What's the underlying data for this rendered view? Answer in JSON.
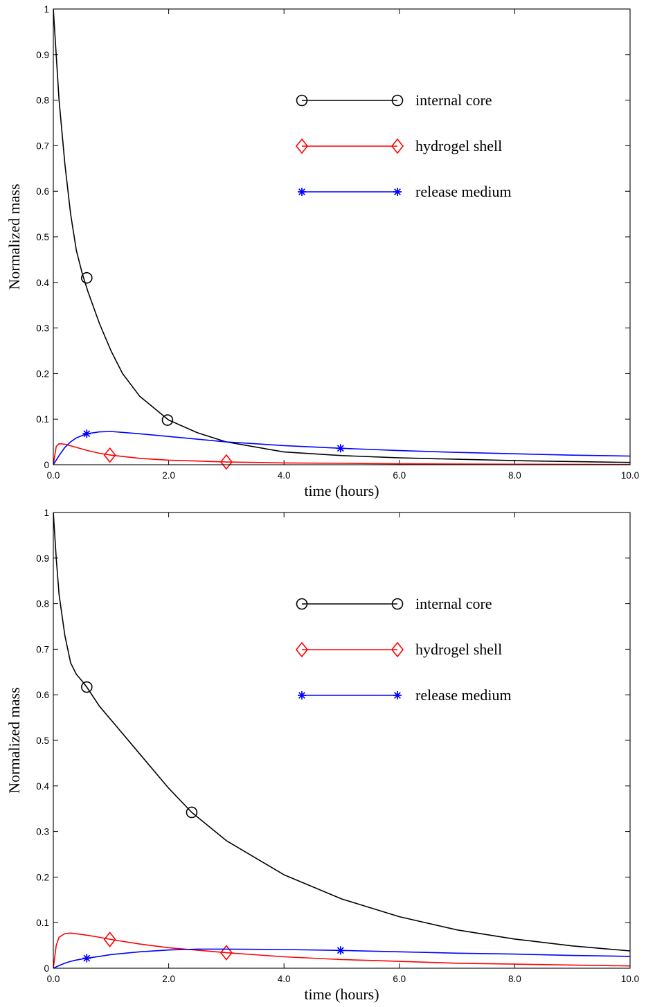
{
  "chart_data": [
    {
      "type": "line",
      "xlabel": "time (hours)",
      "ylabel": "Normalized mass",
      "xlim": [
        0,
        10
      ],
      "ylim": [
        0,
        1
      ],
      "xticks": [
        0,
        2,
        4,
        6,
        8,
        10
      ],
      "xtick_labels": [
        "0.0",
        "2.0",
        "4.0",
        "6.0",
        "8.0",
        "10.0"
      ],
      "yticks": [
        0,
        0.1,
        0.2,
        0.3,
        0.4,
        0.5,
        0.6,
        0.7,
        0.8,
        0.9,
        1
      ],
      "ytick_labels": [
        "0",
        "0.1",
        "0.2",
        "0.3",
        "0.4",
        "0.5",
        "0.6",
        "0.7",
        "0.8",
        "0.9",
        "1"
      ],
      "grid": false,
      "legend_position": "top-right",
      "series": [
        {
          "name": "internal core",
          "color": "#000000",
          "marker": "circle",
          "x": [
            0,
            0.1,
            0.2,
            0.3,
            0.4,
            0.5,
            0.6,
            0.8,
            1.0,
            1.2,
            1.5,
            2.0,
            2.5,
            3.0,
            4.0,
            5.0,
            6.0,
            7.0,
            8.0,
            9.0,
            10.0
          ],
          "y": [
            1.0,
            0.8,
            0.66,
            0.55,
            0.47,
            0.42,
            0.38,
            0.31,
            0.25,
            0.2,
            0.15,
            0.098,
            0.07,
            0.05,
            0.028,
            0.02,
            0.015,
            0.012,
            0.009,
            0.007,
            0.005
          ],
          "markers_x": [
            0.58,
            1.98
          ],
          "markers_y": [
            0.41,
            0.098
          ]
        },
        {
          "name": "hydrogel shell",
          "color": "#ff0000",
          "marker": "diamond",
          "x": [
            0,
            0.05,
            0.1,
            0.2,
            0.4,
            0.6,
            0.8,
            1.0,
            1.5,
            2.0,
            3.0,
            4.0,
            5.0,
            6.0,
            8.0,
            10.0
          ],
          "y": [
            0,
            0.04,
            0.046,
            0.045,
            0.038,
            0.031,
            0.025,
            0.021,
            0.014,
            0.01,
            0.006,
            0.004,
            0.003,
            0.002,
            0.001,
            0.0005
          ],
          "markers_x": [
            0.98,
            3.0
          ],
          "markers_y": [
            0.021,
            0.006
          ]
        },
        {
          "name": "release medium",
          "color": "#0000ff",
          "marker": "star",
          "x": [
            0,
            0.1,
            0.2,
            0.3,
            0.4,
            0.58,
            0.8,
            1.0,
            1.5,
            2.0,
            3.0,
            4.0,
            5.0,
            6.0,
            7.0,
            8.0,
            9.0,
            10.0
          ],
          "y": [
            0,
            0.02,
            0.038,
            0.05,
            0.059,
            0.068,
            0.072,
            0.073,
            0.068,
            0.062,
            0.05,
            0.042,
            0.036,
            0.031,
            0.027,
            0.024,
            0.021,
            0.019
          ],
          "markers_x": [
            0.58,
            4.98
          ],
          "markers_y": [
            0.068,
            0.036
          ]
        }
      ]
    },
    {
      "type": "line",
      "xlabel": "time (hours)",
      "ylabel": "Normalized mass",
      "xlim": [
        0,
        10
      ],
      "ylim": [
        0,
        1
      ],
      "xticks": [
        0,
        2,
        4,
        6,
        8,
        10
      ],
      "xtick_labels": [
        "0.0",
        "2.0",
        "4.0",
        "6.0",
        "8.0",
        "10.0"
      ],
      "yticks": [
        0,
        0.1,
        0.2,
        0.3,
        0.4,
        0.5,
        0.6,
        0.7,
        0.8,
        0.9,
        1
      ],
      "ytick_labels": [
        "0",
        "0.1",
        "0.2",
        "0.3",
        "0.4",
        "0.5",
        "0.6",
        "0.7",
        "0.8",
        "0.9",
        "1"
      ],
      "grid": false,
      "legend_position": "top-right",
      "series": [
        {
          "name": "internal core",
          "color": "#000000",
          "marker": "circle",
          "x": [
            0,
            0.05,
            0.1,
            0.2,
            0.3,
            0.4,
            0.5,
            0.58,
            0.8,
            1.0,
            1.5,
            2.0,
            2.4,
            3.0,
            4.0,
            5.0,
            6.0,
            7.0,
            8.0,
            9.0,
            10.0
          ],
          "y": [
            1.0,
            0.9,
            0.82,
            0.73,
            0.67,
            0.645,
            0.63,
            0.617,
            0.575,
            0.545,
            0.47,
            0.395,
            0.342,
            0.28,
            0.205,
            0.152,
            0.113,
            0.084,
            0.064,
            0.049,
            0.038
          ],
          "markers_x": [
            0.58,
            2.4
          ],
          "markers_y": [
            0.617,
            0.342
          ]
        },
        {
          "name": "hydrogel shell",
          "color": "#ff0000",
          "marker": "diamond",
          "x": [
            0,
            0.05,
            0.1,
            0.2,
            0.3,
            0.5,
            0.7,
            1.0,
            1.5,
            2.0,
            3.0,
            4.0,
            5.0,
            6.0,
            7.0,
            8.0,
            9.0,
            10.0
          ],
          "y": [
            0,
            0.05,
            0.068,
            0.076,
            0.077,
            0.074,
            0.07,
            0.063,
            0.053,
            0.045,
            0.034,
            0.025,
            0.019,
            0.015,
            0.011,
            0.009,
            0.007,
            0.005
          ],
          "markers_x": [
            0.98,
            3.0
          ],
          "markers_y": [
            0.063,
            0.034
          ]
        },
        {
          "name": "release medium",
          "color": "#0000ff",
          "marker": "star",
          "x": [
            0,
            0.1,
            0.2,
            0.3,
            0.4,
            0.58,
            0.8,
            1.0,
            1.5,
            2.0,
            2.5,
            3.0,
            4.0,
            5.0,
            6.0,
            7.0,
            8.0,
            9.0,
            10.0
          ],
          "y": [
            0,
            0.006,
            0.011,
            0.015,
            0.018,
            0.022,
            0.026,
            0.03,
            0.036,
            0.04,
            0.042,
            0.042,
            0.041,
            0.039,
            0.036,
            0.033,
            0.031,
            0.028,
            0.026
          ],
          "markers_x": [
            0.58,
            4.98
          ],
          "markers_y": [
            0.022,
            0.039
          ]
        }
      ]
    }
  ]
}
